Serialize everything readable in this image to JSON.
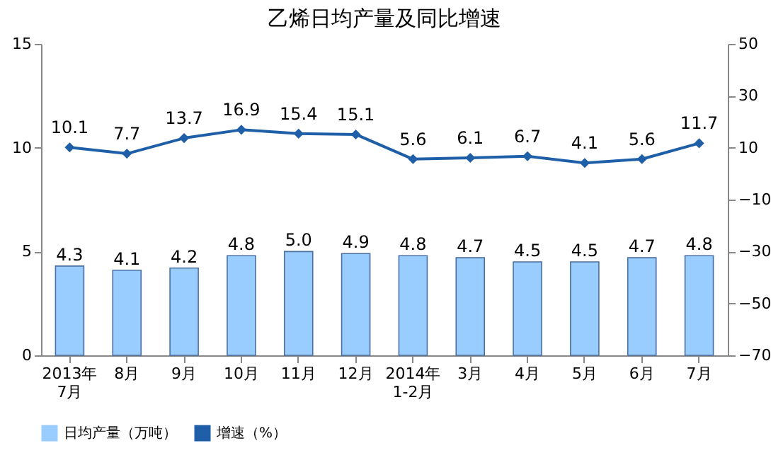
{
  "chart_data": {
    "type": "bar",
    "title": "乙烯日均产量及同比增速",
    "categories": [
      "2013年\n7月",
      "8月",
      "9月",
      "10月",
      "11月",
      "12月",
      "2014年\n1-2月",
      "3月",
      "4月",
      "5月",
      "6月",
      "7月"
    ],
    "series": [
      {
        "name": "日均产量（万吨）",
        "color": "#99ccff",
        "values": [
          4.3,
          4.1,
          4.2,
          4.8,
          5.0,
          4.9,
          4.8,
          4.7,
          4.5,
          4.5,
          4.7,
          4.8
        ],
        "value_labels": [
          "4.3",
          "4.1",
          "4.2",
          "4.8",
          "5.0",
          "4.9",
          "4.8",
          "4.7",
          "4.5",
          "4.5",
          "4.7",
          "4.8"
        ]
      },
      {
        "name": "增速（%）",
        "type": "line",
        "axis": "y2",
        "color": "#1f5fa8",
        "marker": "diamond",
        "line_style": "solid",
        "values": [
          10.1,
          7.7,
          13.7,
          16.9,
          15.4,
          15.1,
          5.6,
          6.1,
          6.7,
          4.1,
          5.6,
          11.7
        ]
      }
    ],
    "ylim": [
      0,
      15
    ],
    "yticks": [
      0,
      5,
      10,
      15
    ],
    "y2lim": [
      -70,
      50
    ],
    "y2ticks": [
      -70,
      -50,
      -30,
      -10,
      10,
      30,
      50
    ],
    "data_labels": true,
    "grid": false,
    "legend": "bottom"
  }
}
